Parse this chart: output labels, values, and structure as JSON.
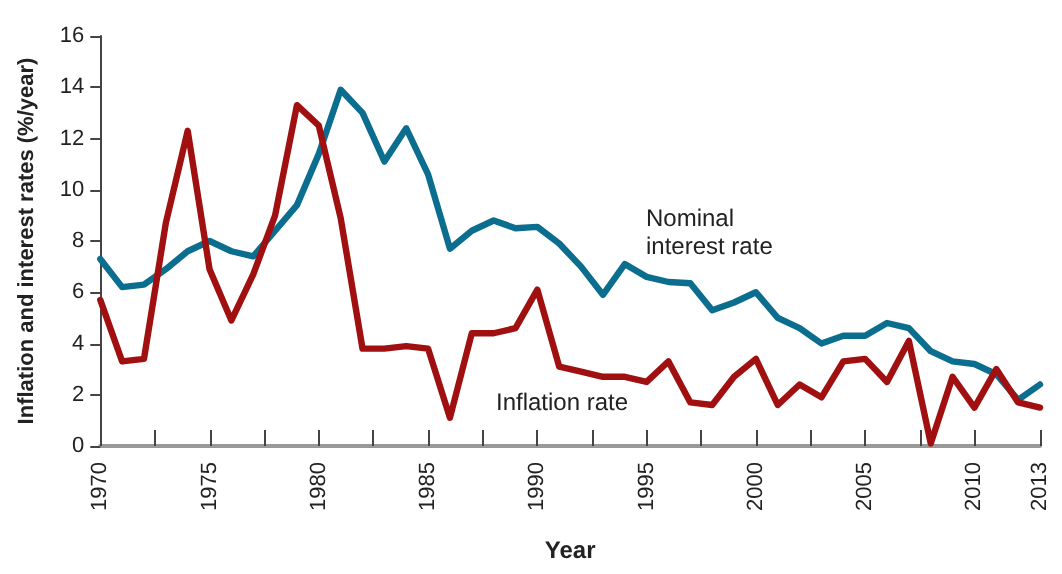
{
  "chart_data": {
    "type": "line",
    "xlabel": "Year",
    "ylabel": "Inflation and interest rates (%/year)",
    "x": [
      1970,
      1971,
      1972,
      1973,
      1974,
      1975,
      1976,
      1977,
      1978,
      1979,
      1980,
      1981,
      1982,
      1983,
      1984,
      1985,
      1986,
      1987,
      1988,
      1989,
      1990,
      1991,
      1992,
      1993,
      1994,
      1995,
      1996,
      1997,
      1998,
      1999,
      2000,
      2001,
      2002,
      2003,
      2004,
      2005,
      2006,
      2007,
      2008,
      2009,
      2010,
      2011,
      2012,
      2013
    ],
    "series": [
      {
        "name": "Nominal interest rate",
        "color": "#0b6e8f",
        "values": [
          7.3,
          6.2,
          6.3,
          6.9,
          7.6,
          8.0,
          7.6,
          7.4,
          8.4,
          9.4,
          11.4,
          13.9,
          13.0,
          11.1,
          12.4,
          10.6,
          7.7,
          8.4,
          8.8,
          8.5,
          8.55,
          7.9,
          7.0,
          5.9,
          7.1,
          6.6,
          6.4,
          6.35,
          5.3,
          5.6,
          6.0,
          5.0,
          4.6,
          4.0,
          4.3,
          4.3,
          4.8,
          4.6,
          3.7,
          3.3,
          3.2,
          2.8,
          1.8,
          2.4
        ]
      },
      {
        "name": "Inflation rate",
        "color": "#a01010",
        "values": [
          5.7,
          3.3,
          3.4,
          8.7,
          12.3,
          6.9,
          4.9,
          6.7,
          9.0,
          13.3,
          12.5,
          8.9,
          3.8,
          3.8,
          3.9,
          3.8,
          1.1,
          4.4,
          4.4,
          4.6,
          6.1,
          3.1,
          2.9,
          2.7,
          2.7,
          2.5,
          3.3,
          1.7,
          1.6,
          2.7,
          3.4,
          1.6,
          2.4,
          1.9,
          3.3,
          3.4,
          2.5,
          4.1,
          0.1,
          2.7,
          1.5,
          3.0,
          1.7,
          1.5
        ]
      }
    ],
    "xlim": [
      1970,
      2013
    ],
    "xticks": [
      1970,
      {
        "value": 1972.5,
        "label": null
      },
      1975,
      {
        "value": 1977.5,
        "label": null
      },
      1980,
      {
        "value": 1982.5,
        "label": null
      },
      1985,
      {
        "value": 1987.5,
        "label": null
      },
      1990,
      {
        "value": 1992.5,
        "label": null
      },
      1995,
      {
        "value": 1997.5,
        "label": null
      },
      2000,
      {
        "value": 2002.5,
        "label": null
      },
      2005,
      {
        "value": 2007.5,
        "label": null
      },
      2010,
      2013
    ],
    "ylim": [
      0,
      16
    ],
    "yticks": [
      0,
      2,
      4,
      6,
      8,
      10,
      12,
      14,
      16
    ],
    "grid": false,
    "legend": false,
    "marker": "none",
    "line_style": "solid"
  }
}
